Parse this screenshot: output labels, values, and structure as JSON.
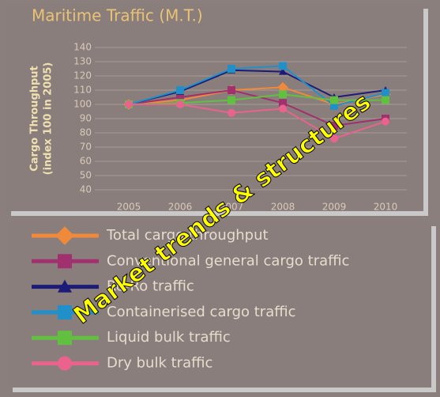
{
  "chart_data": {
    "type": "line",
    "title": "Maritime Traffic (M.T.)",
    "y_label": [
      "Cargo Throughput",
      "(index 100 in 2005)"
    ],
    "categories": [
      "2005",
      "2006",
      "2007",
      "2008",
      "2009",
      "2010"
    ],
    "ylim": [
      40,
      140
    ],
    "yticks": [
      40,
      50,
      60,
      70,
      80,
      90,
      100,
      110,
      120,
      130,
      140
    ],
    "grid": true,
    "series": [
      {
        "name": "Total cargo throughput",
        "color": "#f08a3a",
        "marker": "diamond",
        "values": [
          100,
          103,
          110,
          112,
          100,
          107
        ]
      },
      {
        "name": "Conventional general cargo traffic",
        "color": "#a0306e",
        "marker": "square",
        "values": [
          100,
          105,
          110,
          101,
          85,
          90
        ]
      },
      {
        "name": "Ro-Ro traffic",
        "color": "#1c1c78",
        "marker": "triangle",
        "values": [
          100,
          109,
          124,
          123,
          105,
          110
        ]
      },
      {
        "name": "Containerised cargo traffic",
        "color": "#2190c8",
        "marker": "square",
        "values": [
          100,
          110,
          125,
          127,
          99,
          108
        ]
      },
      {
        "name": "Liquid bulk traffic",
        "color": "#62c040",
        "marker": "square",
        "values": [
          100,
          101,
          103,
          107,
          103,
          103
        ]
      },
      {
        "name": "Dry bulk traffic",
        "color": "#ea628e",
        "marker": "circle",
        "values": [
          100,
          100,
          94,
          97,
          76,
          88
        ]
      }
    ]
  },
  "overlay": "Market trends & structures"
}
